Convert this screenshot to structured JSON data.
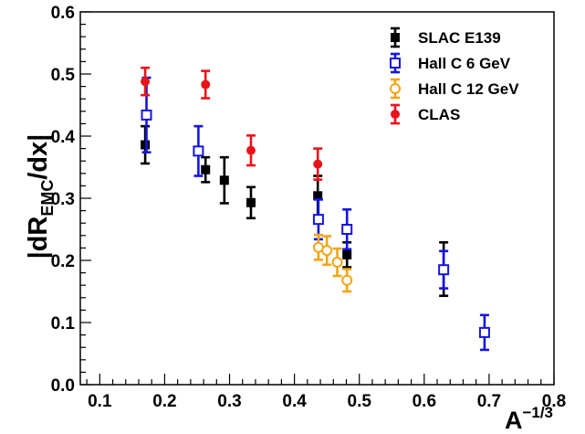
{
  "chart_data": {
    "type": "scatter",
    "title": "",
    "xlabel": {
      "base": "A",
      "sup": "−1/3"
    },
    "ylabel": {
      "pre": "|dR",
      "sub": "EMC",
      "post": "/dx|"
    },
    "xlim": [
      0.07,
      0.8
    ],
    "ylim": [
      0.0,
      0.6
    ],
    "x_ticks": [
      0.1,
      0.2,
      0.3,
      0.4,
      0.5,
      0.6,
      0.7,
      0.8
    ],
    "x_tick_labels": [
      "0.1",
      "0.2",
      "0.3",
      "0.4",
      "0.5",
      "0.6",
      "0.7",
      "0.8"
    ],
    "y_ticks": [
      0.0,
      0.1,
      0.2,
      0.3,
      0.4,
      0.5,
      0.6
    ],
    "y_tick_labels": [
      "0.0",
      "0.1",
      "0.2",
      "0.3",
      "0.4",
      "0.5",
      "0.6"
    ],
    "grid": false,
    "legend_position": "top-right",
    "series": [
      {
        "name": "SLAC E139",
        "color": "#000000",
        "marker": "filled-square",
        "points": [
          {
            "x": 0.17,
            "y": 0.386,
            "err": 0.03
          },
          {
            "x": 0.263,
            "y": 0.346,
            "err": 0.02
          },
          {
            "x": 0.292,
            "y": 0.329,
            "err": 0.037
          },
          {
            "x": 0.333,
            "y": 0.293,
            "err": 0.025
          },
          {
            "x": 0.436,
            "y": 0.304,
            "err": 0.032
          },
          {
            "x": 0.481,
            "y": 0.209,
            "err": 0.02
          },
          {
            "x": 0.63,
            "y": 0.186,
            "err": 0.043
          }
        ]
      },
      {
        "name": "Hall C 6 GeV",
        "color": "#1515e0",
        "marker": "open-square",
        "points": [
          {
            "x": 0.172,
            "y": 0.434,
            "err": 0.06
          },
          {
            "x": 0.252,
            "y": 0.376,
            "err": 0.04
          },
          {
            "x": 0.437,
            "y": 0.266,
            "err": 0.032
          },
          {
            "x": 0.481,
            "y": 0.25,
            "err": 0.032
          },
          {
            "x": 0.63,
            "y": 0.185,
            "err": 0.03
          },
          {
            "x": 0.693,
            "y": 0.084,
            "err": 0.028
          }
        ]
      },
      {
        "name": "Hall C 12 GeV",
        "color": "#f2a516",
        "marker": "open-circle",
        "points": [
          {
            "x": 0.437,
            "y": 0.221,
            "err": 0.02
          },
          {
            "x": 0.45,
            "y": 0.216,
            "err": 0.023
          },
          {
            "x": 0.466,
            "y": 0.197,
            "err": 0.022
          },
          {
            "x": 0.481,
            "y": 0.168,
            "err": 0.018
          }
        ]
      },
      {
        "name": "CLAS",
        "color": "#e8141a",
        "marker": "filled-circle",
        "points": [
          {
            "x": 0.17,
            "y": 0.488,
            "err": 0.022
          },
          {
            "x": 0.263,
            "y": 0.483,
            "err": 0.022
          },
          {
            "x": 0.333,
            "y": 0.377,
            "err": 0.024
          },
          {
            "x": 0.436,
            "y": 0.355,
            "err": 0.025
          }
        ]
      }
    ]
  }
}
